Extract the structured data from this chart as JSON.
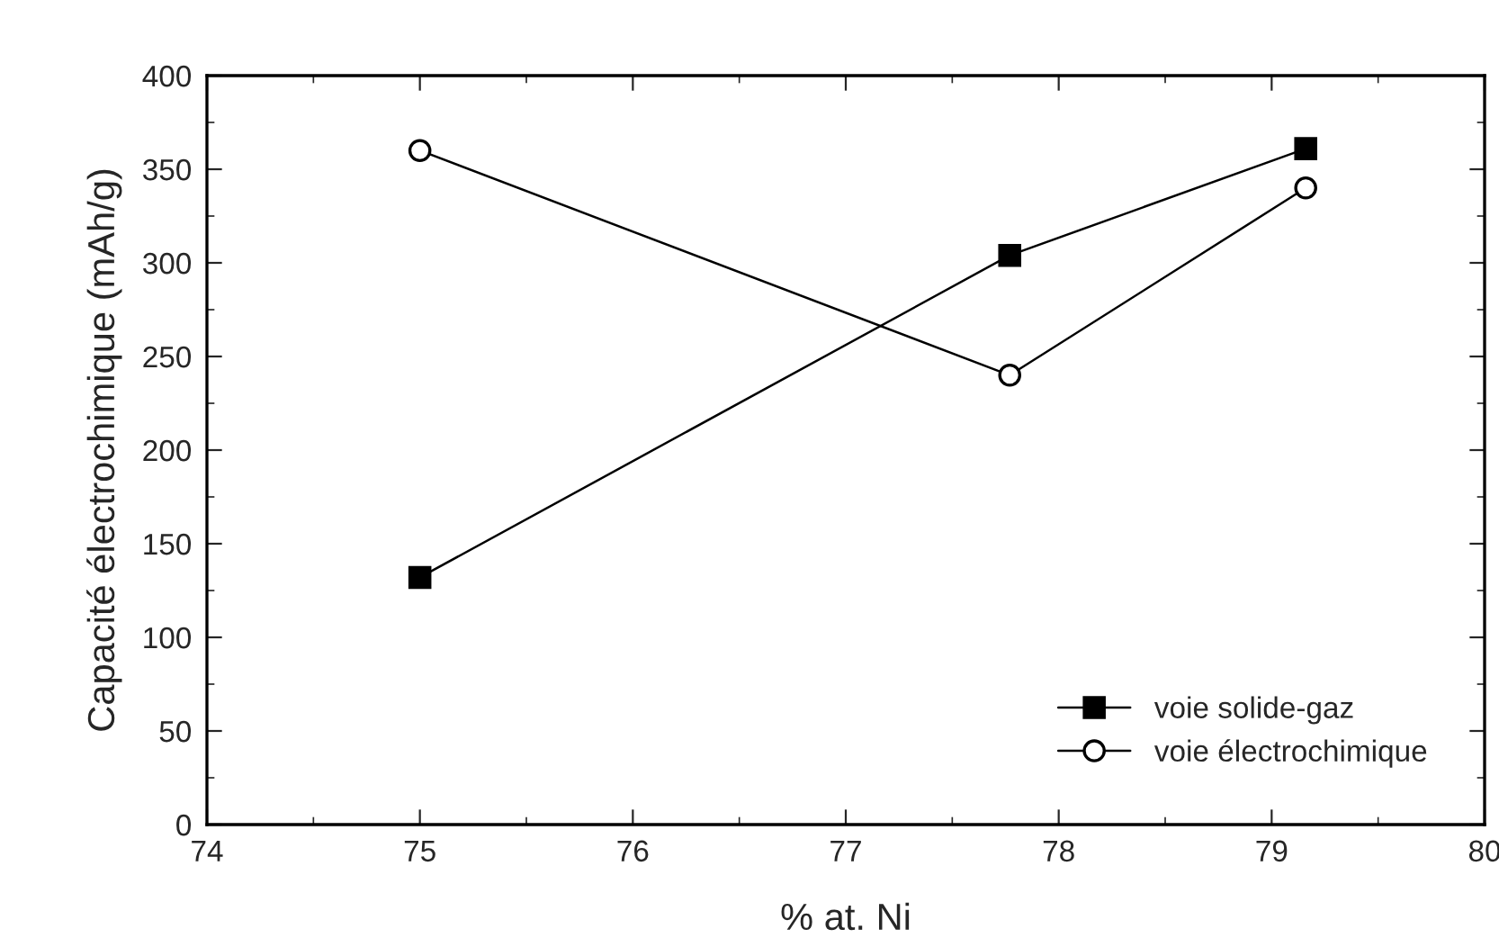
{
  "chart_data": {
    "type": "line",
    "xlabel": "% at. Ni",
    "ylabel": "Capacité électrochimique (mAh/g)",
    "series": [
      {
        "name": "voie solide-gaz",
        "color": "#000000",
        "marker": "square",
        "x": [
          75,
          77.77,
          79.16
        ],
        "values": [
          132,
          304,
          361
        ]
      },
      {
        "name": "voie électrochimique",
        "color": "#000000",
        "marker": "circle",
        "x": [
          75,
          77.77,
          79.16
        ],
        "values": [
          360,
          240,
          340
        ]
      }
    ],
    "xlim": [
      74,
      80
    ],
    "xticks": [
      74,
      75,
      76,
      77,
      78,
      79,
      80
    ],
    "ylim": [
      0,
      400
    ],
    "yticks": [
      0,
      50,
      100,
      150,
      200,
      250,
      300,
      350,
      400
    ],
    "grid": false,
    "legend": "bottom right",
    "line_style": "solid"
  }
}
